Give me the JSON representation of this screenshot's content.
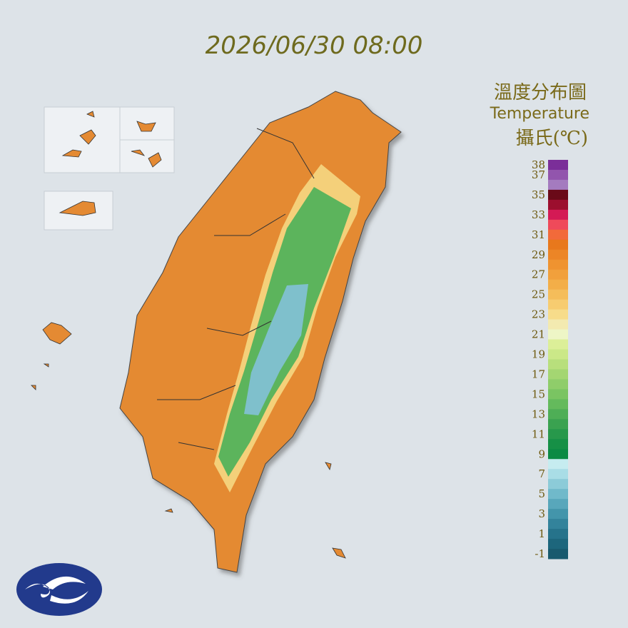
{
  "header": {
    "timestamp": "2026/06/30 08:00"
  },
  "legend": {
    "title": "溫度分布圖",
    "subtitle": "Temperature",
    "unit": "攝氏(℃)",
    "ticks": [
      38,
      37,
      35,
      33,
      31,
      29,
      27,
      25,
      23,
      21,
      19,
      17,
      15,
      13,
      11,
      9,
      7,
      5,
      3,
      1,
      -1
    ],
    "colors": [
      "#7b2e99",
      "#9255ad",
      "#a47bbf",
      "#6a0a18",
      "#9c0f2e",
      "#d41a55",
      "#ef4a5a",
      "#f26a3a",
      "#e8781c",
      "#ec8526",
      "#ef9330",
      "#f1a03c",
      "#f3ae48",
      "#f5bd5a",
      "#f7cc70",
      "#f7dc8a",
      "#f3eab0",
      "#eef6c6",
      "#dcef98",
      "#cbe888",
      "#b8df7c",
      "#a4d672",
      "#8fcd6a",
      "#7ac462",
      "#64ba5c",
      "#4eae56",
      "#3aa250",
      "#27984b",
      "#169046",
      "#0b8a44",
      "#c6ecf0",
      "#a9dde6",
      "#8ccbd8",
      "#70b9ca",
      "#58a7bb",
      "#4395ab",
      "#33839b",
      "#26738b",
      "#1d667c",
      "#185a6e"
    ]
  }
}
